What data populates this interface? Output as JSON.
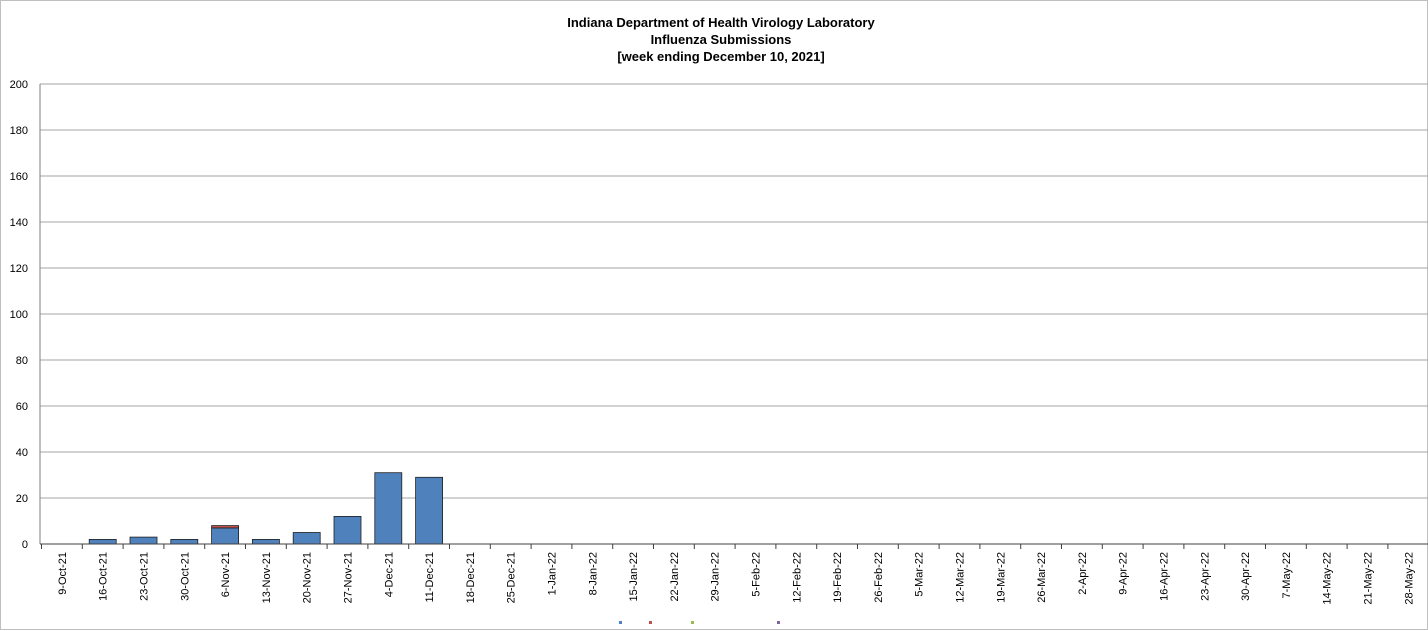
{
  "chart_data": {
    "type": "bar",
    "stacked": true,
    "title_lines": [
      "Indiana Department of Health Virology Laboratory",
      "Influenza Submissions",
      "[week ending December 10, 2021]"
    ],
    "xlabel": "",
    "ylabel": "",
    "ylim": [
      0,
      200
    ],
    "yticks": [
      0,
      20,
      40,
      60,
      80,
      100,
      120,
      140,
      160,
      180,
      200
    ],
    "grid": true,
    "legend_position": "bottom",
    "categories": [
      "9-Oct-21",
      "16-Oct-21",
      "23-Oct-21",
      "30-Oct-21",
      "6-Nov-21",
      "13-Nov-21",
      "20-Nov-21",
      "27-Nov-21",
      "4-Dec-21",
      "11-Dec-21",
      "18-Dec-21",
      "25-Dec-21",
      "1-Jan-22",
      "8-Jan-22",
      "15-Jan-22",
      "22-Jan-22",
      "29-Jan-22",
      "5-Feb-22",
      "12-Feb-22",
      "19-Feb-22",
      "26-Feb-22",
      "5-Mar-22",
      "12-Mar-22",
      "19-Mar-22",
      "26-Mar-22",
      "2-Apr-22",
      "9-Apr-22",
      "16-Apr-22",
      "23-Apr-22",
      "30-Apr-22",
      "7-May-22",
      "14-May-22",
      "21-May-22",
      "28-May-22"
    ],
    "series": [
      {
        "name": "",
        "color": "#4f81bd",
        "values": [
          0,
          2,
          3,
          2,
          7,
          2,
          5,
          12,
          31,
          29,
          0,
          0,
          0,
          0,
          0,
          0,
          0,
          0,
          0,
          0,
          0,
          0,
          0,
          0,
          0,
          0,
          0,
          0,
          0,
          0,
          0,
          0,
          0,
          0
        ]
      },
      {
        "name": "",
        "color": "#c0504d",
        "values": [
          0,
          0,
          0,
          0,
          1,
          0,
          0,
          0,
          0,
          0,
          0,
          0,
          0,
          0,
          0,
          0,
          0,
          0,
          0,
          0,
          0,
          0,
          0,
          0,
          0,
          0,
          0,
          0,
          0,
          0,
          0,
          0,
          0,
          0
        ]
      }
    ],
    "legend_swatch_colors": [
      "#4f81bd",
      "#c0504d",
      "#9bbb59",
      "#8064a2"
    ]
  }
}
